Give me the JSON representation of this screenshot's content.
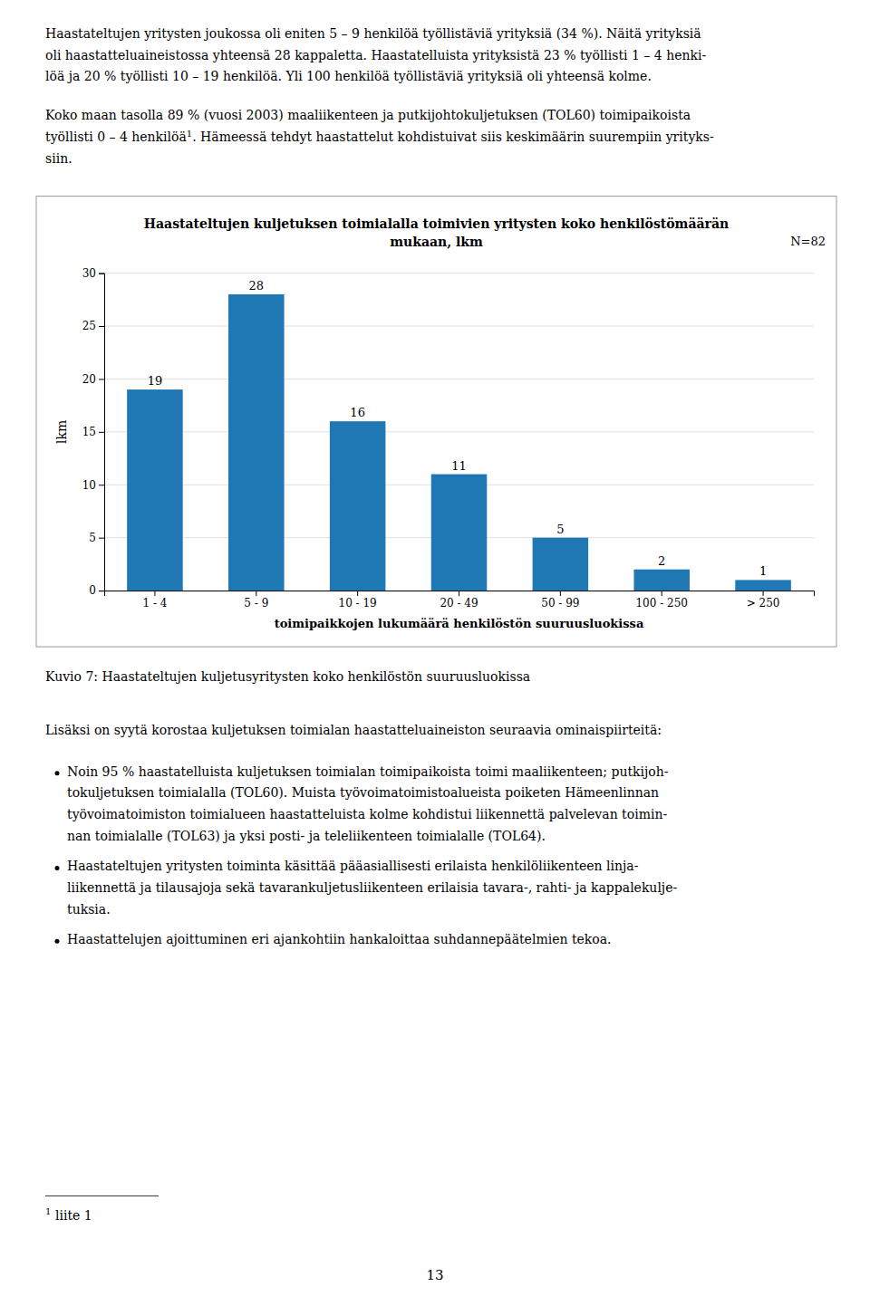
{
  "paragraphs": [
    [
      "Haastateltujen yritysten joukossa oli eniten 5 – 9 henkilöä työllistäviä yrityksiä (34 %). Näitä yrityksiä",
      "oli haastatteluaineistossa yhteensä 28 kappaletta. Haastatelluista yrityksistä 23 % työllisti 1 – 4 henki-",
      "löä ja 20 % työllisti 10 – 19 henkilöä. Yli 100 henkilöä työllistäviä yrityksiä oli yhteensä kolme."
    ],
    [
      "Koko maan tasolla 89 % (vuosi 2003) maaliikenteen ja putkijohtokuljetuksen (TOL60) toimipaikoista",
      {
        "text": "työllisti 0 – 4 henkilöä",
        "footnote_mark": "1",
        "text_after": ". Hämeessä tehdyt haastattelut kohdistuivat siis keskimäärin suurempiin yrityks-"
      },
      "siin."
    ]
  ],
  "chart_data": {
    "type": "bar",
    "title": [
      "Haastateltujen kuljetuksen toimialalla toimivien yritysten koko henkilöstömäärän",
      "mukaan, lkm"
    ],
    "annotation": "N=82",
    "categories": [
      "1 - 4",
      "5 - 9",
      "10 - 19",
      "20 - 49",
      "50 - 99",
      "100 - 250",
      "> 250"
    ],
    "values": [
      19,
      28,
      16,
      11,
      5,
      2,
      1
    ],
    "xlabel": "toimipaikkojen lukumäärä henkilöstön suuruusluokissa",
    "ylabel": "lkm",
    "ylim": [
      0,
      30
    ],
    "yticks": [
      0,
      5,
      10,
      15,
      20,
      25,
      30
    ],
    "grid": true,
    "data_labels": true
  },
  "caption": "Kuvio 7: Haastateltujen kuljetusyritysten koko henkilöstön suuruusluokissa",
  "heading": "Lisäksi on syytä korostaa kuljetuksen toimialan haastatteluaineiston seuraavia ominaispiirteitä:",
  "bullets": [
    [
      "Noin 95 % haastatelluista kuljetuksen toimialan toimipaikoista toimi maaliikenteen; putkijoh-",
      "tokuljetuksen toimialalla (TOL60). Muista työvoimatoimistoalueista poiketen Hämeenlinnan",
      "työvoimatoimiston toimialueen haastatteluista kolme kohdistui liikennettä palvelevan toimin-",
      "nan toimialalle (TOL63) ja yksi posti- ja teleliikenteen toimialalle (TOL64)."
    ],
    [
      "Haastateltujen yritysten toiminta käsittää pääasiallisesti erilaista henkilöliikenteen linja-",
      "liikennettä ja tilausajoja sekä tavarankuljetusliikenteen erilaisia tavara-, rahti- ja kappalekulje-",
      "tuksia."
    ],
    [
      "Haastattelujen ajoittuminen eri ajankohtiin hankaloittaa suhdannepäätelmien tekoa."
    ]
  ],
  "footnote": {
    "mark": "1",
    "text": "liite 1"
  },
  "page_number": "13"
}
